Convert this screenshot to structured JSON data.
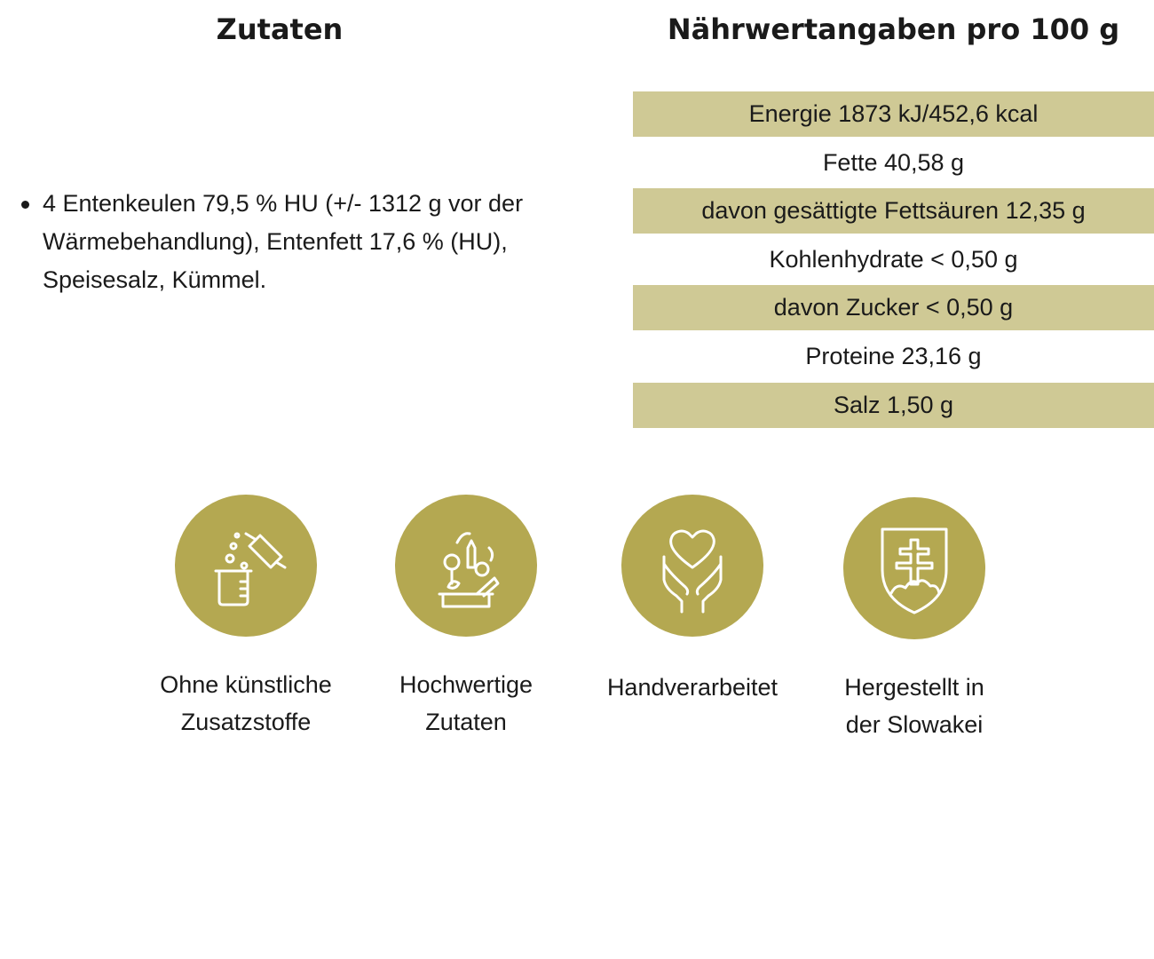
{
  "ingredients": {
    "title": "Zutaten",
    "items": [
      "4 Entenkeulen 79,5 % HU (+/- 1312 g vor der Wärmebehandlung), Entenfett 17,6 % (HU), Speisesalz, Kümmel."
    ]
  },
  "nutrition": {
    "title": "Nährwertangaben pro 100 g",
    "rows": [
      "Energie 1873 kJ/452,6 kcal",
      "Fette 40,58 g",
      "davon gesättigte Fettsäuren 12,35 g",
      "Kohlenhydrate < 0,50 g",
      "davon Zucker < 0,50 g",
      "Proteine 23,16 g",
      "Salz 1,50 g"
    ]
  },
  "badges": [
    {
      "icon": "lab-flask-icon",
      "line1": "Ohne künstliche",
      "line2": "Zusatzstoffe"
    },
    {
      "icon": "vegetables-basket-icon",
      "line1": "Hochwertige",
      "line2": "Zutaten"
    },
    {
      "icon": "heart-hands-icon",
      "line1": "Handverarbeitet",
      "line2": ""
    },
    {
      "icon": "slovak-coat-of-arms-icon",
      "line1": "Hergestellt in",
      "line2": "der Slowakei"
    }
  ],
  "colors": {
    "row_shade": "#cfc995",
    "badge_circle": "#b4a851",
    "text": "#1a1a1a"
  }
}
